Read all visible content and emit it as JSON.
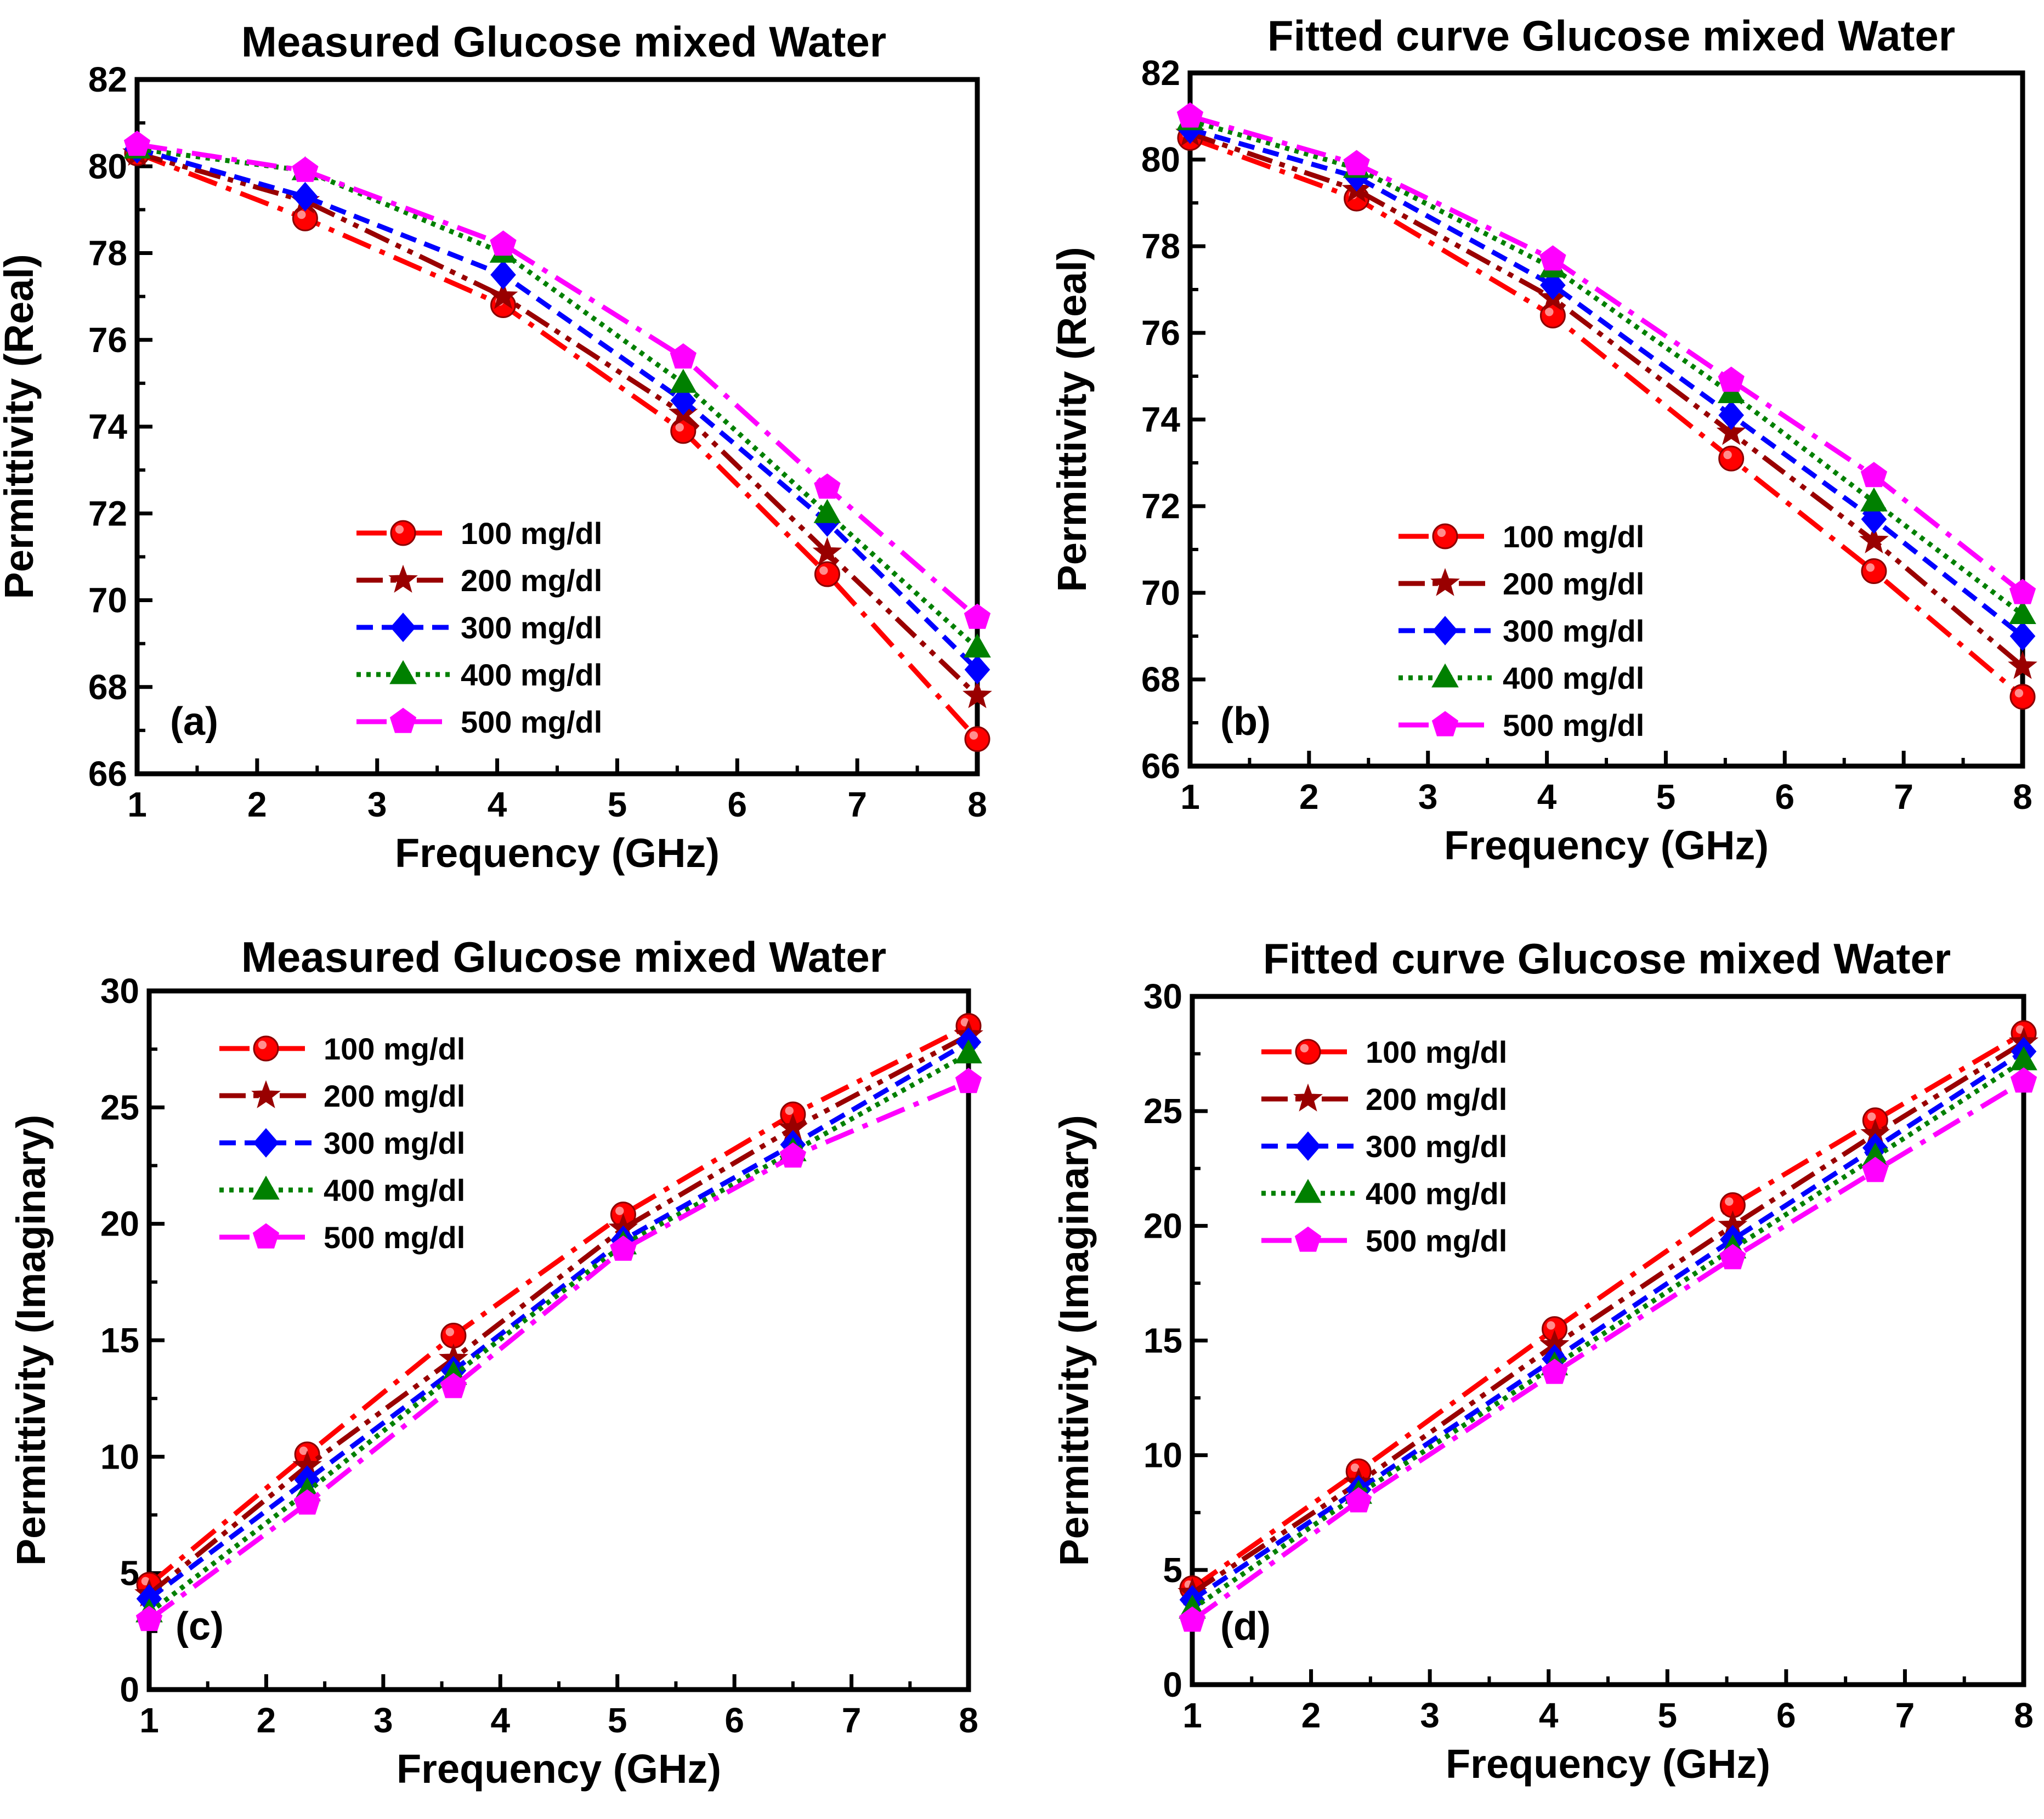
{
  "chart_data": [
    {
      "type": "line",
      "panel_label": "(a)",
      "title": "Measured Glucose mixed Water",
      "xlabel": "Frequency (GHz)",
      "ylabel": "Permittivity (Real)",
      "xlim": [
        1,
        8
      ],
      "ylim": [
        66,
        82
      ],
      "xticks": [
        "1",
        "2",
        "3",
        "4",
        "5",
        "6",
        "7",
        "8"
      ],
      "yticks": [
        "66",
        "68",
        "70",
        "72",
        "74",
        "76",
        "78",
        "80",
        "82"
      ],
      "grid": false,
      "legend_position": "lower-center",
      "x": [
        1,
        2.4,
        4.05,
        5.55,
        6.75,
        8
      ],
      "series": [
        {
          "name": "100 mg/dl",
          "values": [
            80.3,
            78.8,
            76.8,
            73.9,
            70.6,
            66.8
          ]
        },
        {
          "name": "200 mg/dl",
          "values": [
            80.3,
            79.2,
            77.0,
            74.3,
            71.1,
            67.8
          ]
        },
        {
          "name": "300 mg/dl",
          "values": [
            80.4,
            79.3,
            77.5,
            74.6,
            71.8,
            68.4
          ]
        },
        {
          "name": "400 mg/dl",
          "values": [
            80.4,
            79.9,
            78.0,
            75.0,
            72.0,
            68.9
          ]
        },
        {
          "name": "500 mg/dl",
          "values": [
            80.5,
            79.9,
            78.2,
            75.6,
            72.6,
            69.6
          ]
        }
      ]
    },
    {
      "type": "line",
      "panel_label": "(b)",
      "title": "Fitted curve Glucose mixed Water",
      "xlabel": "Frequency (GHz)",
      "ylabel": "Permittivity (Real)",
      "xlim": [
        1,
        8
      ],
      "ylim": [
        66,
        82
      ],
      "xticks": [
        "1",
        "2",
        "3",
        "4",
        "5",
        "6",
        "7",
        "8"
      ],
      "yticks": [
        "66",
        "68",
        "70",
        "72",
        "74",
        "76",
        "78",
        "80",
        "82"
      ],
      "grid": false,
      "legend_position": "lower-center",
      "x": [
        1,
        2.4,
        4.05,
        5.55,
        6.75,
        8
      ],
      "series": [
        {
          "name": "100 mg/dl",
          "values": [
            80.5,
            79.1,
            76.4,
            73.1,
            70.5,
            67.6
          ]
        },
        {
          "name": "200 mg/dl",
          "values": [
            80.6,
            79.3,
            76.8,
            73.7,
            71.2,
            68.3
          ]
        },
        {
          "name": "300 mg/dl",
          "values": [
            80.7,
            79.6,
            77.1,
            74.1,
            71.7,
            69.0
          ]
        },
        {
          "name": "400 mg/dl",
          "values": [
            80.9,
            79.8,
            77.5,
            74.6,
            72.1,
            69.5
          ]
        },
        {
          "name": "500 mg/dl",
          "values": [
            81.0,
            79.9,
            77.7,
            74.9,
            72.7,
            70.0
          ]
        }
      ]
    },
    {
      "type": "line",
      "panel_label": "(c)",
      "title": "Measured Glucose mixed Water",
      "xlabel": "Frequency (GHz)",
      "ylabel": "Permittivity (Imaginary)",
      "xlim": [
        1,
        8
      ],
      "ylim": [
        0,
        30
      ],
      "xticks": [
        "1",
        "2",
        "3",
        "4",
        "5",
        "6",
        "7",
        "8"
      ],
      "yticks": [
        "0",
        "5",
        "10",
        "15",
        "20",
        "25",
        "30"
      ],
      "grid": false,
      "legend_position": "upper-left",
      "x": [
        1,
        2.35,
        3.6,
        5.05,
        6.5,
        8
      ],
      "series": [
        {
          "name": "100 mg/dl",
          "values": [
            4.5,
            10.1,
            15.2,
            20.4,
            24.7,
            28.5
          ]
        },
        {
          "name": "200 mg/dl",
          "values": [
            4.1,
            9.6,
            14.2,
            19.8,
            24.1,
            28.1
          ]
        },
        {
          "name": "300 mg/dl",
          "values": [
            3.9,
            9.0,
            13.7,
            19.3,
            23.4,
            27.8
          ]
        },
        {
          "name": "400 mg/dl",
          "values": [
            3.3,
            8.5,
            13.5,
            19.1,
            23.1,
            27.3
          ]
        },
        {
          "name": "500 mg/dl",
          "values": [
            3.0,
            8.0,
            13.0,
            18.9,
            22.9,
            26.1
          ]
        }
      ]
    },
    {
      "type": "line",
      "panel_label": "(d)",
      "title": "Fitted curve Glucose mixed Water",
      "xlabel": "Frequency (GHz)",
      "ylabel": "Permittivity (Imaginary)",
      "xlim": [
        1,
        8
      ],
      "ylim": [
        0,
        30
      ],
      "xticks": [
        "1",
        "2",
        "3",
        "4",
        "5",
        "6",
        "7",
        "8"
      ],
      "yticks": [
        "0",
        "5",
        "10",
        "15",
        "20",
        "25",
        "30"
      ],
      "grid": false,
      "legend_position": "upper-left",
      "x": [
        1,
        2.4,
        4.05,
        5.55,
        6.75,
        8
      ],
      "series": [
        {
          "name": "100 mg/dl",
          "values": [
            4.2,
            9.3,
            15.5,
            20.9,
            24.6,
            28.4
          ]
        },
        {
          "name": "200 mg/dl",
          "values": [
            4.0,
            8.8,
            14.8,
            20.0,
            24.0,
            28.0
          ]
        },
        {
          "name": "300 mg/dl",
          "values": [
            3.7,
            8.5,
            14.2,
            19.4,
            23.4,
            27.6
          ]
        },
        {
          "name": "400 mg/dl",
          "values": [
            3.3,
            8.3,
            13.9,
            19.0,
            23.0,
            27.2
          ]
        },
        {
          "name": "500 mg/dl",
          "values": [
            2.8,
            8.0,
            13.6,
            18.6,
            22.4,
            26.3
          ]
        }
      ]
    }
  ],
  "series_styles": [
    {
      "color": "#ff0000",
      "dash": "dashdot",
      "marker": "circle"
    },
    {
      "color": "#990000",
      "dash": "dashdotdot",
      "marker": "star"
    },
    {
      "color": "#0000ff",
      "dash": "dash",
      "marker": "diamond"
    },
    {
      "color": "#008000",
      "dash": "dot",
      "marker": "triangle"
    },
    {
      "color": "#ff00ff",
      "dash": "dashdot",
      "marker": "pentagon"
    }
  ]
}
